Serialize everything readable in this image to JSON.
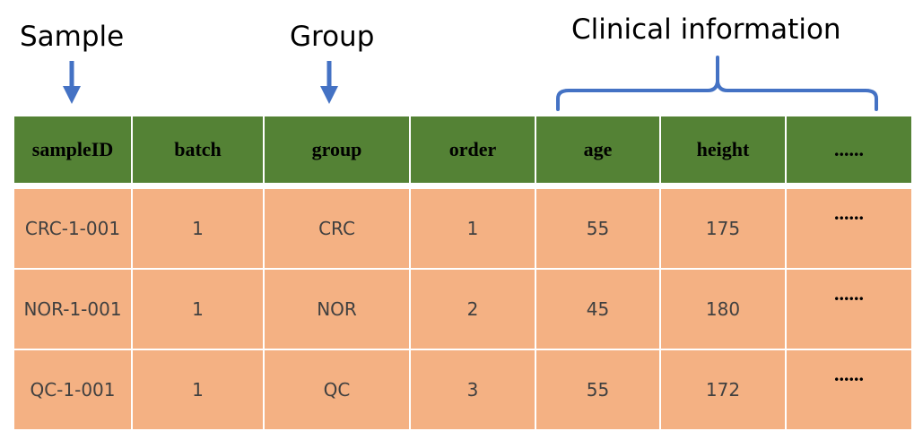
{
  "labels": {
    "sample": "Sample",
    "group": "Group",
    "clinical": "Clinical information"
  },
  "colors": {
    "header_bg": "#548235",
    "row_bg": "#f4b183",
    "arrow": "#4472c4"
  },
  "table": {
    "headers": [
      "sampleID",
      "batch",
      "group",
      "order",
      "age",
      "height",
      "......"
    ],
    "rows": [
      [
        "CRC-1-001",
        "1",
        "CRC",
        "1",
        "55",
        "175",
        "......"
      ],
      [
        "NOR-1-001",
        "1",
        "NOR",
        "2",
        "45",
        "180",
        "......"
      ],
      [
        "QC-1-001",
        "1",
        "QC",
        "3",
        "55",
        "172",
        "......"
      ]
    ]
  }
}
